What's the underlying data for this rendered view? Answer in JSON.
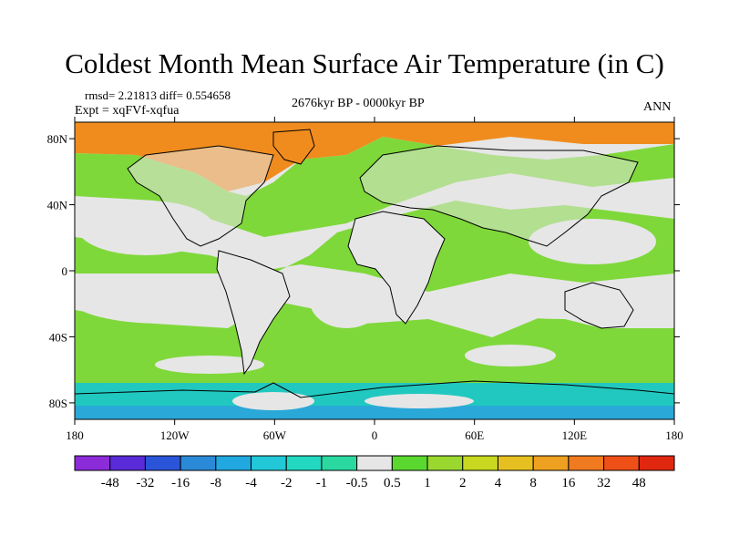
{
  "title": "Coldest Month Mean Surface Air Temperature (in C)",
  "header": {
    "stats": "rmsd= 2.21813 diff= 0.554658",
    "expt": "Expt = xqFVf-xqfua",
    "period": "2676kyr BP - 0000kyr BP",
    "season": "ANN"
  },
  "map": {
    "lat_labels": [
      "80N",
      "40N",
      "0",
      "40S",
      "80S"
    ],
    "lon_labels": [
      "180",
      "120W",
      "60W",
      "0",
      "60E",
      "120E",
      "180"
    ],
    "lat_values": [
      80,
      40,
      0,
      -40,
      -80
    ],
    "lon_values": [
      -180,
      -120,
      -60,
      0,
      60,
      120,
      180
    ],
    "lat_range": [
      -90,
      90
    ],
    "lon_range": [
      -180,
      180
    ],
    "colors": {
      "land_background": "#e6e6e6",
      "ocean_warm": "#7fd83a",
      "arctic_warm": "#f08c1e",
      "south_ocean": "#21c8c0",
      "antarctic": "#2aa8d8"
    }
  },
  "colorbar": {
    "colors": [
      "#8c2bd8",
      "#5a2bd8",
      "#2b55d8",
      "#2b8ad8",
      "#22a8e0",
      "#22c8d8",
      "#22d8c0",
      "#2ad8a0",
      "#e6e6e6",
      "#5ad830",
      "#9ad830",
      "#c8d820",
      "#e6c020",
      "#eea020",
      "#f07a20",
      "#ee5018",
      "#e02810"
    ],
    "labels": [
      "-48",
      "-32",
      "-16",
      "-8",
      "-4",
      "-2",
      "-1",
      "-0.5",
      "0.5",
      "1",
      "2",
      "4",
      "8",
      "16",
      "32",
      "48"
    ]
  }
}
